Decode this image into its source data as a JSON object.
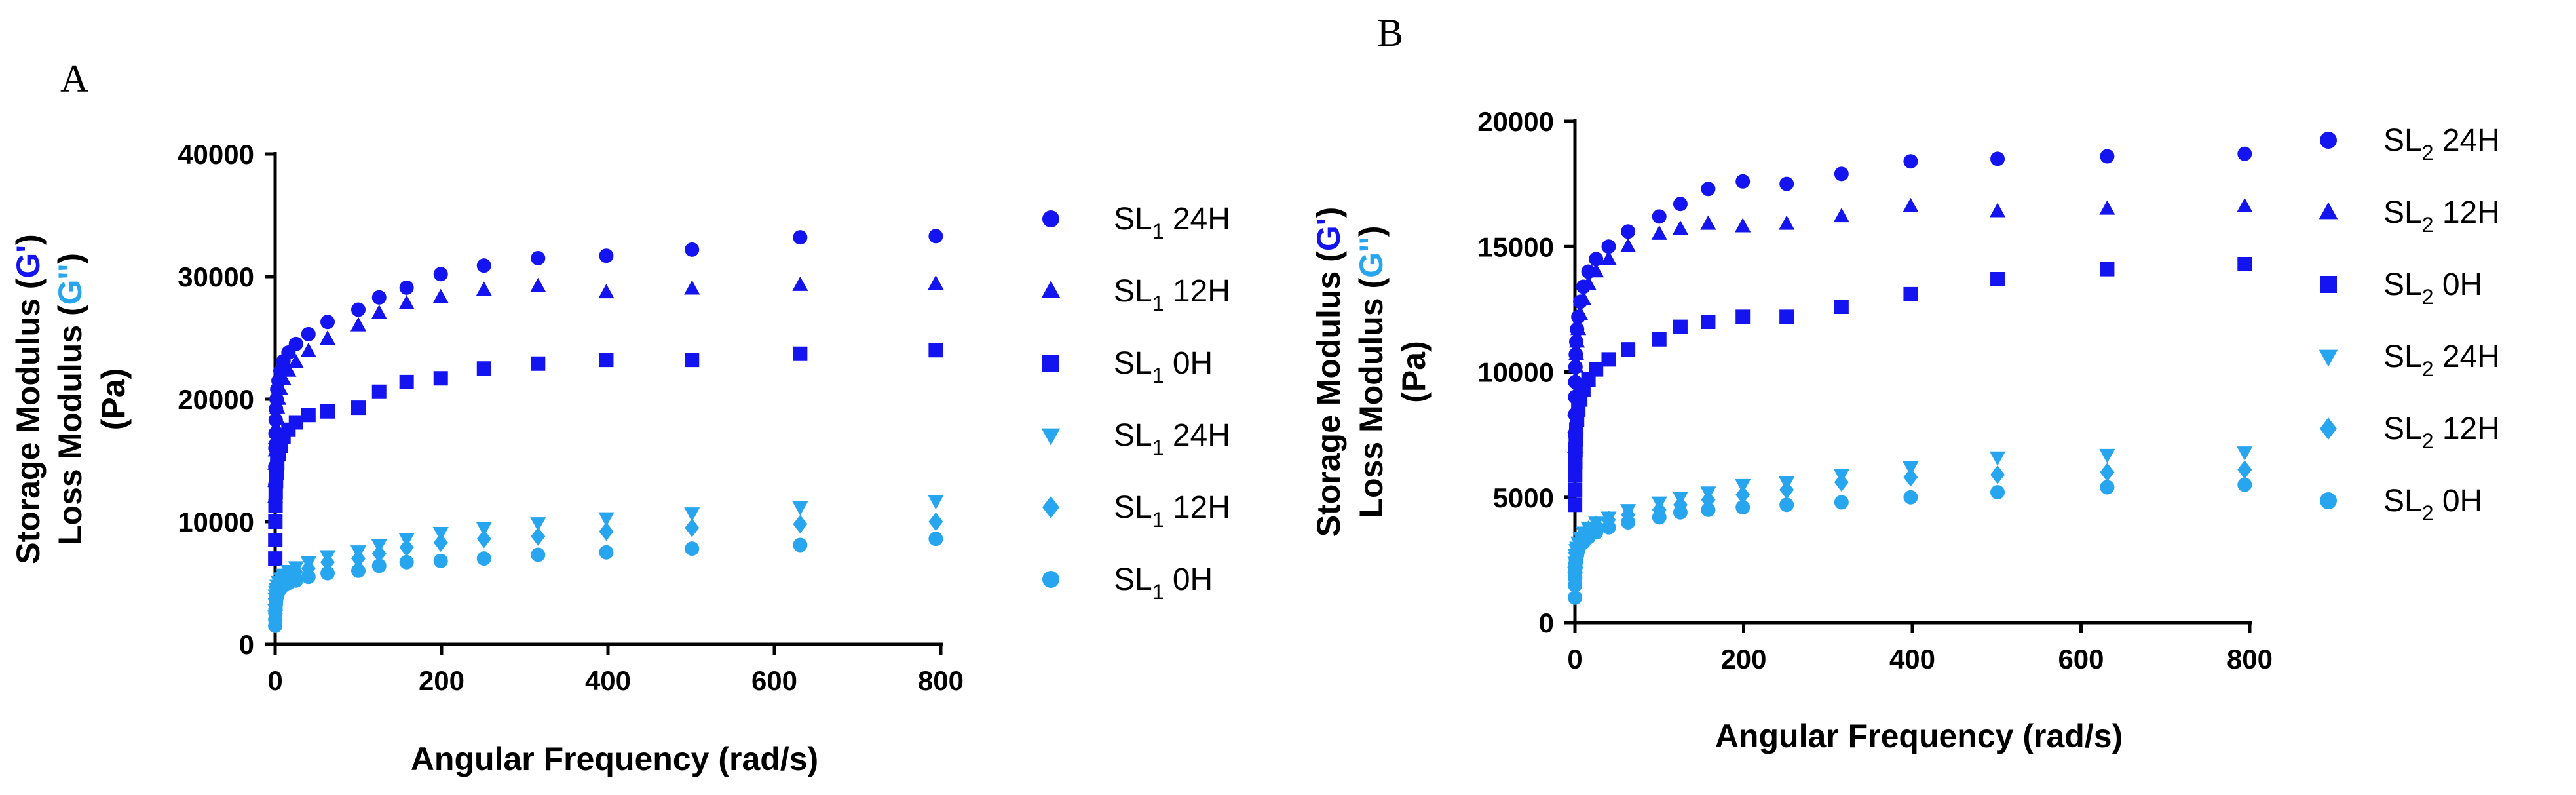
{
  "chart_data": [
    {
      "panel": "A",
      "type": "scatter",
      "title": "",
      "xlabel": "Angular Frequency (rad/s)",
      "ylabel_parts": {
        "storage": "Storage Modulus",
        "storage_symbol": "G'",
        "loss": "Loss Modulus",
        "loss_symbol": "G''",
        "unit": "(Pa)"
      },
      "xlim": [
        0,
        800
      ],
      "ylim": [
        0,
        40000
      ],
      "xticks": [
        "0",
        "200",
        "400",
        "600",
        "800"
      ],
      "yticks": [
        "0",
        "10000",
        "20000",
        "30000",
        "40000"
      ],
      "x": [
        0.1,
        0.16,
        0.25,
        0.4,
        0.63,
        1,
        1.6,
        2.5,
        4,
        6.3,
        10,
        16,
        25,
        40,
        63,
        100,
        125,
        158,
        199,
        251,
        316,
        398,
        501,
        631,
        794
      ],
      "series": [
        {
          "name": "SL",
          "sub": "1",
          "suffix": " 24H",
          "modulus": "storage",
          "marker": "circle",
          "color": "#1414f0",
          "values": [
            13000,
            14500,
            16000,
            17200,
            18300,
            19200,
            20000,
            20800,
            21500,
            22300,
            23100,
            23800,
            24500,
            25300,
            26300,
            27300,
            28300,
            29100,
            30200,
            30900,
            31500,
            31700,
            32200,
            33200,
            33300
          ]
        },
        {
          "name": "SL",
          "sub": "1",
          "suffix": " 12H",
          "modulus": "storage",
          "marker": "triangle-up",
          "color": "#1414f0",
          "values": [
            12000,
            13300,
            14700,
            15800,
            16800,
            17700,
            18500,
            19300,
            20000,
            20800,
            21600,
            22300,
            23000,
            23900,
            24900,
            26000,
            27000,
            27800,
            28300,
            28900,
            29200,
            28700,
            29000,
            29300,
            29400
          ]
        },
        {
          "name": "SL",
          "sub": "1",
          "suffix": " 0H",
          "modulus": "storage",
          "marker": "square",
          "color": "#1414f0",
          "values": [
            7000,
            8500,
            10000,
            11300,
            12400,
            13300,
            14000,
            14800,
            15500,
            16200,
            16900,
            17500,
            18100,
            18700,
            19000,
            19300,
            20600,
            21400,
            21700,
            22500,
            22900,
            23200,
            23200,
            23700,
            24000
          ]
        },
        {
          "name": "SL",
          "sub": "1",
          "suffix": " 24H",
          "modulus": "loss",
          "marker": "triangle-down",
          "color": "#27a6ef",
          "values": [
            2300,
            2800,
            3300,
            3700,
            4000,
            4300,
            4500,
            4800,
            5100,
            5400,
            5700,
            6000,
            6300,
            6700,
            7200,
            7600,
            8100,
            8600,
            9100,
            9500,
            9900,
            10300,
            10700,
            11200,
            11700
          ]
        },
        {
          "name": "SL",
          "sub": "1",
          "suffix": " 12H",
          "modulus": "loss",
          "marker": "diamond",
          "color": "#27a6ef",
          "values": [
            2100,
            2500,
            2900,
            3300,
            3600,
            3900,
            4200,
            4400,
            4700,
            5000,
            5300,
            5600,
            5900,
            6200,
            6700,
            7000,
            7400,
            7900,
            8300,
            8600,
            8800,
            9200,
            9500,
            9800,
            10000
          ]
        },
        {
          "name": "SL",
          "sub": "1",
          "suffix": " 0H",
          "modulus": "loss",
          "marker": "circle",
          "color": "#27a6ef",
          "values": [
            1500,
            2000,
            2500,
            2900,
            3200,
            3500,
            3800,
            4000,
            4300,
            4500,
            4800,
            5000,
            5200,
            5500,
            5800,
            6000,
            6400,
            6700,
            6800,
            7000,
            7300,
            7500,
            7800,
            8100,
            8600
          ]
        }
      ]
    },
    {
      "panel": "B",
      "type": "scatter",
      "title": "",
      "xlabel": "Angular Frequency (rad/s)",
      "ylabel_parts": {
        "storage": "Storage Modulus",
        "storage_symbol": "G'",
        "loss": "Loss Modulus",
        "loss_symbol": "G''",
        "unit": "(Pa)"
      },
      "xlim": [
        0,
        800
      ],
      "ylim": [
        0,
        20000
      ],
      "xticks": [
        "0",
        "200",
        "400",
        "600",
        "800"
      ],
      "yticks": [
        "0",
        "5000",
        "10000",
        "15000",
        "20000"
      ],
      "x": [
        0.1,
        0.16,
        0.25,
        0.4,
        0.63,
        1,
        1.6,
        2.5,
        4,
        6.3,
        10,
        16,
        25,
        40,
        63,
        100,
        125,
        158,
        199,
        251,
        316,
        398,
        501,
        631,
        794
      ],
      "series": [
        {
          "name": "SL",
          "sub": "2",
          "suffix": " 24H",
          "modulus": "storage",
          "marker": "circle",
          "color": "#1414f0",
          "values": [
            7500,
            8300,
            9000,
            9600,
            10200,
            10700,
            11200,
            11700,
            12200,
            12800,
            13400,
            14000,
            14500,
            15000,
            15600,
            16200,
            16700,
            17300,
            17600,
            17500,
            17900,
            18400,
            18500,
            18600,
            18700
          ]
        },
        {
          "name": "SL",
          "sub": "2",
          "suffix": " 12H",
          "modulus": "storage",
          "marker": "triangle-up",
          "color": "#1414f0",
          "values": [
            7000,
            7800,
            8500,
            9100,
            9700,
            10200,
            10700,
            11200,
            11700,
            12300,
            12900,
            13500,
            14000,
            14500,
            15000,
            15500,
            15700,
            15900,
            15800,
            15900,
            16200,
            16600,
            16400,
            16500,
            16600
          ]
        },
        {
          "name": "SL",
          "sub": "2",
          "suffix": " 0H",
          "modulus": "storage",
          "marker": "square",
          "color": "#1414f0",
          "values": [
            4700,
            5300,
            5900,
            6400,
            6900,
            7300,
            7700,
            8100,
            8500,
            8900,
            9300,
            9700,
            10100,
            10500,
            10900,
            11300,
            11800,
            12000,
            12200,
            12200,
            12600,
            13100,
            13700,
            14100,
            14300
          ]
        },
        {
          "name": "SL",
          "sub": "2",
          "suffix": " 24H",
          "modulus": "loss",
          "marker": "triangle-down",
          "color": "#27a6ef",
          "values": [
            1800,
            2000,
            2200,
            2400,
            2600,
            2700,
            2900,
            3000,
            3200,
            3400,
            3600,
            3800,
            4000,
            4200,
            4500,
            4800,
            5000,
            5200,
            5500,
            5600,
            5900,
            6200,
            6600,
            6700,
            6800
          ]
        },
        {
          "name": "SL",
          "sub": "2",
          "suffix": " 12H",
          "modulus": "loss",
          "marker": "diamond",
          "color": "#27a6ef",
          "values": [
            1700,
            1900,
            2100,
            2300,
            2500,
            2600,
            2800,
            2900,
            3100,
            3300,
            3500,
            3700,
            3900,
            4100,
            4300,
            4500,
            4700,
            4900,
            5100,
            5300,
            5600,
            5800,
            5900,
            6000,
            6100
          ]
        },
        {
          "name": "SL",
          "sub": "2",
          "suffix": " 0H",
          "modulus": "loss",
          "marker": "circle",
          "color": "#27a6ef",
          "values": [
            1000,
            1500,
            1800,
            2000,
            2200,
            2400,
            2500,
            2700,
            2900,
            3100,
            3200,
            3400,
            3600,
            3800,
            4000,
            4200,
            4400,
            4500,
            4600,
            4700,
            4800,
            5000,
            5200,
            5400,
            5500
          ]
        }
      ]
    }
  ]
}
